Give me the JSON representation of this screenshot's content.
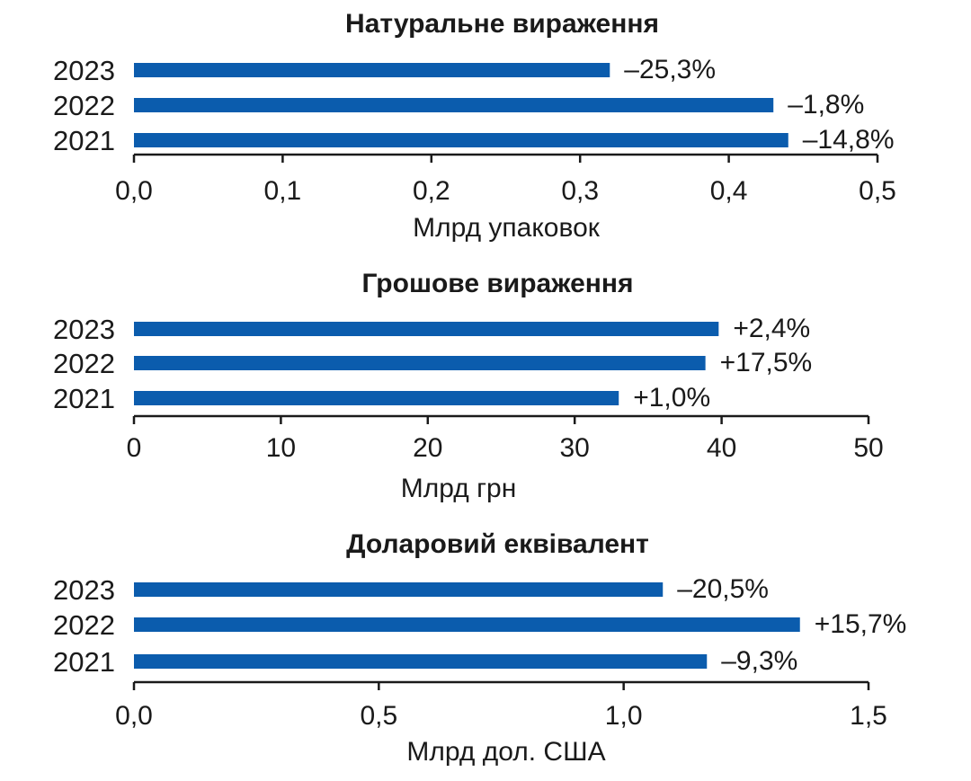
{
  "colors": {
    "bar": "#0b5cad",
    "axis": "#1a1a1a",
    "text": "#1a1a1a"
  },
  "chart_data": [
    {
      "type": "bar",
      "orientation": "horizontal",
      "title": "Натуральне вираження",
      "xlabel": "Млрд упаковок",
      "categories": [
        "2023",
        "2022",
        "2021"
      ],
      "values": [
        0.32,
        0.43,
        0.44
      ],
      "value_labels": [
        "–25,3%",
        "–1,8%",
        "–14,8%"
      ],
      "xlim": [
        0,
        0.5
      ],
      "ticks": [
        0,
        0.1,
        0.2,
        0.3,
        0.4,
        0.5
      ],
      "tick_labels": [
        "0,0",
        "0,1",
        "0,2",
        "0,3",
        "0,4",
        "0,5"
      ],
      "grid": false
    },
    {
      "type": "bar",
      "orientation": "horizontal",
      "title": "Грошове вираження",
      "xlabel": "Млрд грн",
      "categories": [
        "2023",
        "2022",
        "2021"
      ],
      "values": [
        39.8,
        38.9,
        33.0
      ],
      "value_labels": [
        "+2,4%",
        "+17,5%",
        "+1,0%"
      ],
      "xlim": [
        0,
        50
      ],
      "ticks": [
        0,
        10,
        20,
        30,
        40,
        50
      ],
      "tick_labels": [
        "0",
        "10",
        "20",
        "30",
        "40",
        "50"
      ],
      "grid": false
    },
    {
      "type": "bar",
      "orientation": "horizontal",
      "title": "Доларовий еквівалент",
      "xlabel": "Млрд дол. США",
      "categories": [
        "2023",
        "2022",
        "2021"
      ],
      "values": [
        1.08,
        1.36,
        1.17
      ],
      "value_labels": [
        "–20,5%",
        "+15,7%",
        "–9,3%"
      ],
      "xlim": [
        0,
        1.5
      ],
      "ticks": [
        0,
        0.5,
        1.0,
        1.5
      ],
      "tick_labels": [
        "0,0",
        "0,5",
        "1,0",
        "1,5"
      ],
      "grid": false
    }
  ]
}
